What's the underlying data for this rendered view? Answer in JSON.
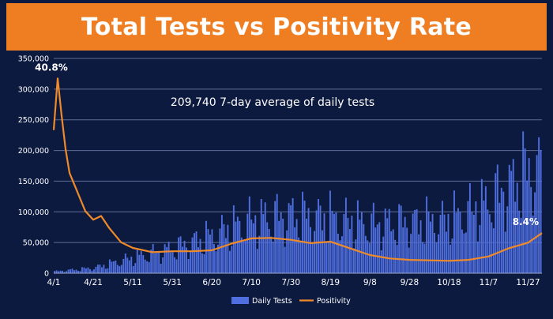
{
  "title": "Total Tests vs Positivity Rate",
  "chart_data": {
    "type": "bar",
    "title": "Total Tests vs Positivity Rate",
    "annotation": "209,740 7-day average of daily tests",
    "y_ticks": [
      "0",
      "50,000",
      "100,000",
      "150,000",
      "200,000",
      "250,000",
      "300,000",
      "350,000"
    ],
    "ylim": [
      0,
      350000
    ],
    "x_ticks": [
      "4/1",
      "4/21",
      "5/11",
      "5/31",
      "6/20",
      "7/10",
      "7/30",
      "8/19",
      "9/8",
      "9/28",
      "10/18",
      "11/7",
      "11/27"
    ],
    "grid": true,
    "legend_position": "bottom",
    "colors": {
      "bars": "#4f6fe0",
      "line": "#ee8a2a",
      "grid": "#5f6d96",
      "axis_text": "#ffffff"
    },
    "series": [
      {
        "name": "Daily Tests",
        "type": "bar",
        "x": [
          "4/1",
          "4/21",
          "5/11",
          "5/31",
          "6/20",
          "7/10",
          "7/30",
          "8/19",
          "9/8",
          "9/28",
          "10/18",
          "11/7",
          "11/27",
          "12/4"
        ],
        "values": [
          4000,
          12000,
          35000,
          55000,
          85000,
          120000,
          130000,
          125000,
          110000,
          115000,
          120000,
          160000,
          230000,
          240000
        ]
      },
      {
        "name": "Positivity",
        "type": "line",
        "x": [
          "4/1",
          "4/3",
          "4/5",
          "4/7",
          "4/9",
          "4/13",
          "4/17",
          "4/21",
          "4/25",
          "4/29",
          "5/5",
          "5/11",
          "5/21",
          "5/31",
          "6/10",
          "6/20",
          "6/30",
          "7/10",
          "7/20",
          "7/30",
          "8/9",
          "8/19",
          "8/29",
          "9/8",
          "9/18",
          "9/28",
          "10/8",
          "10/18",
          "10/28",
          "11/7",
          "11/17",
          "11/27",
          "12/4"
        ],
        "values": [
          30.0,
          40.8,
          33.0,
          26.0,
          21.0,
          17.0,
          13.0,
          11.2,
          12.0,
          9.5,
          6.5,
          5.3,
          4.4,
          4.6,
          4.6,
          4.8,
          6.2,
          7.3,
          7.4,
          7.0,
          6.3,
          6.6,
          5.2,
          3.8,
          3.1,
          2.8,
          2.7,
          2.6,
          2.8,
          3.5,
          5.2,
          6.4,
          8.4
        ]
      }
    ],
    "data_labels": [
      {
        "series": "Positivity",
        "x": "4/3",
        "label": "40.8%"
      },
      {
        "series": "Positivity",
        "x": "12/4",
        "label": "8.4%"
      }
    ],
    "legend": [
      "Daily Tests",
      "Positivity"
    ]
  }
}
